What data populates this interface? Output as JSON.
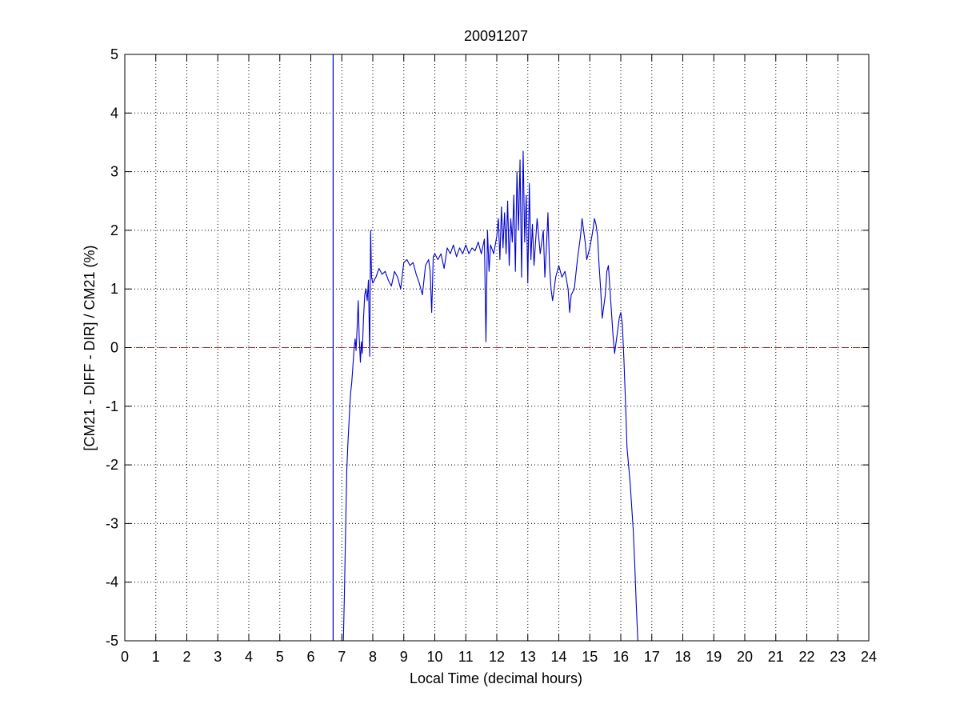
{
  "chart_data": {
    "type": "line",
    "title": "20091207",
    "xlabel": "Local Time (decimal hours)",
    "ylabel": "[CM21 - DIFF - DIR] / CM21 (%)",
    "xlim": [
      0,
      24
    ],
    "ylim": [
      -5,
      5
    ],
    "xticks": [
      "0",
      "1",
      "2",
      "3",
      "4",
      "5",
      "6",
      "7",
      "8",
      "9",
      "10",
      "11",
      "12",
      "13",
      "14",
      "15",
      "16",
      "17",
      "18",
      "19",
      "20",
      "21",
      "22",
      "23",
      "24"
    ],
    "yticks": [
      "5",
      "4",
      "3",
      "2",
      "1",
      "0",
      "-1",
      "-2",
      "-3",
      "-4",
      "-5"
    ],
    "grid": true,
    "colors": {
      "series": "#0000cc",
      "reference": "#b22222",
      "grid": "#000000",
      "axes": "#000000"
    },
    "reference_line": {
      "y": 0,
      "style": "dashed"
    },
    "vertical_marker": {
      "x": 6.72,
      "y": [
        -5,
        5
      ]
    },
    "series": [
      {
        "values": [
          [
            7.05,
            -5.0
          ],
          [
            7.08,
            -4.3
          ],
          [
            7.12,
            -3.2
          ],
          [
            7.16,
            -2.1
          ],
          [
            7.2,
            -1.6
          ],
          [
            7.24,
            -1.2
          ],
          [
            7.28,
            -0.8
          ],
          [
            7.32,
            -0.6
          ],
          [
            7.36,
            -0.3
          ],
          [
            7.4,
            0.0
          ],
          [
            7.43,
            0.15
          ],
          [
            7.46,
            -0.05
          ],
          [
            7.5,
            0.4
          ],
          [
            7.53,
            0.8
          ],
          [
            7.56,
            0.2
          ],
          [
            7.6,
            -0.25
          ],
          [
            7.63,
            0.1
          ],
          [
            7.66,
            -0.1
          ],
          [
            7.7,
            0.5
          ],
          [
            7.74,
            0.9
          ],
          [
            7.78,
            1.0
          ],
          [
            7.82,
            0.8
          ],
          [
            7.86,
            1.15
          ],
          [
            7.9,
            -0.15
          ],
          [
            7.93,
            2.0
          ],
          [
            7.96,
            1.2
          ],
          [
            8.0,
            1.1
          ],
          [
            8.1,
            1.2
          ],
          [
            8.2,
            1.35
          ],
          [
            8.3,
            1.25
          ],
          [
            8.4,
            1.3
          ],
          [
            8.5,
            1.15
          ],
          [
            8.6,
            1.05
          ],
          [
            8.7,
            1.3
          ],
          [
            8.8,
            1.2
          ],
          [
            8.9,
            1.0
          ],
          [
            9.0,
            1.45
          ],
          [
            9.1,
            1.5
          ],
          [
            9.2,
            1.4
          ],
          [
            9.3,
            1.45
          ],
          [
            9.4,
            1.25
          ],
          [
            9.5,
            1.1
          ],
          [
            9.6,
            0.9
          ],
          [
            9.7,
            1.4
          ],
          [
            9.8,
            1.5
          ],
          [
            9.85,
            1.3
          ],
          [
            9.9,
            0.6
          ],
          [
            9.95,
            1.55
          ],
          [
            10.0,
            1.6
          ],
          [
            10.1,
            1.5
          ],
          [
            10.2,
            1.6
          ],
          [
            10.3,
            1.35
          ],
          [
            10.4,
            1.7
          ],
          [
            10.5,
            1.6
          ],
          [
            10.6,
            1.75
          ],
          [
            10.7,
            1.55
          ],
          [
            10.8,
            1.7
          ],
          [
            10.9,
            1.6
          ],
          [
            11.0,
            1.75
          ],
          [
            11.1,
            1.6
          ],
          [
            11.2,
            1.7
          ],
          [
            11.3,
            1.65
          ],
          [
            11.4,
            1.8
          ],
          [
            11.5,
            1.6
          ],
          [
            11.6,
            1.85
          ],
          [
            11.65,
            0.1
          ],
          [
            11.7,
            2.0
          ],
          [
            11.75,
            1.3
          ],
          [
            11.8,
            1.75
          ],
          [
            11.9,
            1.6
          ],
          [
            12.0,
            1.9
          ],
          [
            12.05,
            2.2
          ],
          [
            12.1,
            1.5
          ],
          [
            12.15,
            2.4
          ],
          [
            12.2,
            1.7
          ],
          [
            12.25,
            2.3
          ],
          [
            12.3,
            1.6
          ],
          [
            12.35,
            2.5
          ],
          [
            12.4,
            1.4
          ],
          [
            12.45,
            2.2
          ],
          [
            12.5,
            1.8
          ],
          [
            12.55,
            2.6
          ],
          [
            12.6,
            1.3
          ],
          [
            12.65,
            3.0
          ],
          [
            12.7,
            2.0
          ],
          [
            12.75,
            3.2
          ],
          [
            12.8,
            1.2
          ],
          [
            12.85,
            3.35
          ],
          [
            12.9,
            1.8
          ],
          [
            12.95,
            2.6
          ],
          [
            13.0,
            1.1
          ],
          [
            13.05,
            2.8
          ],
          [
            13.1,
            1.5
          ],
          [
            13.15,
            2.1
          ],
          [
            13.2,
            1.4
          ],
          [
            13.3,
            2.2
          ],
          [
            13.4,
            1.6
          ],
          [
            13.5,
            2.0
          ],
          [
            13.55,
            1.2
          ],
          [
            13.6,
            1.7
          ],
          [
            13.65,
            2.3
          ],
          [
            13.7,
            1.4
          ],
          [
            13.75,
            1.0
          ],
          [
            13.8,
            0.8
          ],
          [
            13.9,
            1.2
          ],
          [
            14.0,
            1.4
          ],
          [
            14.1,
            1.2
          ],
          [
            14.2,
            1.3
          ],
          [
            14.3,
            1.0
          ],
          [
            14.35,
            0.6
          ],
          [
            14.4,
            0.9
          ],
          [
            14.5,
            1.0
          ],
          [
            14.6,
            1.5
          ],
          [
            14.7,
            1.9
          ],
          [
            14.75,
            2.2
          ],
          [
            14.8,
            2.0
          ],
          [
            14.85,
            1.8
          ],
          [
            14.9,
            1.5
          ],
          [
            15.0,
            1.7
          ],
          [
            15.1,
            2.0
          ],
          [
            15.15,
            2.2
          ],
          [
            15.2,
            2.1
          ],
          [
            15.25,
            1.9
          ],
          [
            15.3,
            1.4
          ],
          [
            15.35,
            1.0
          ],
          [
            15.4,
            0.5
          ],
          [
            15.45,
            0.7
          ],
          [
            15.5,
            0.9
          ],
          [
            15.55,
            1.3
          ],
          [
            15.6,
            1.4
          ],
          [
            15.65,
            1.0
          ],
          [
            15.7,
            0.6
          ],
          [
            15.75,
            0.2
          ],
          [
            15.8,
            -0.1
          ],
          [
            15.85,
            0.1
          ],
          [
            15.9,
            0.3
          ],
          [
            15.95,
            0.5
          ],
          [
            16.0,
            0.6
          ],
          [
            16.05,
            0.4
          ],
          [
            16.1,
            -0.2
          ],
          [
            16.15,
            -0.9
          ],
          [
            16.2,
            -1.7
          ],
          [
            16.25,
            -2.0
          ],
          [
            16.3,
            -2.3
          ],
          [
            16.35,
            -2.7
          ],
          [
            16.4,
            -3.1
          ],
          [
            16.45,
            -3.7
          ],
          [
            16.5,
            -4.4
          ],
          [
            16.55,
            -5.0
          ]
        ]
      }
    ]
  }
}
